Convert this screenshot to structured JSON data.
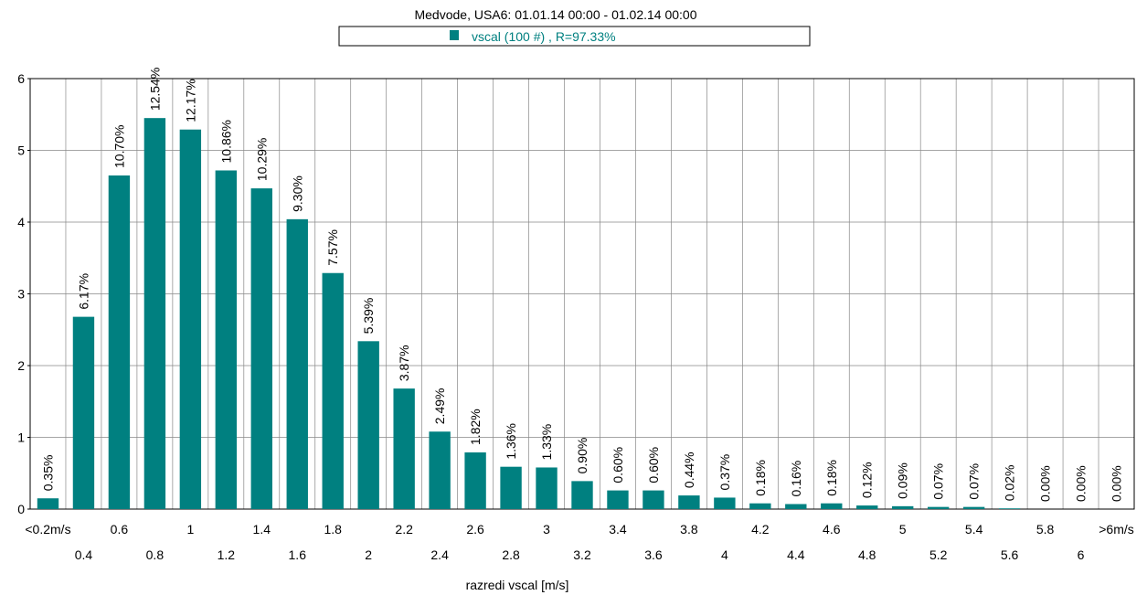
{
  "chart_data": {
    "type": "bar",
    "title": "Medvode, USA6: 01.01.14 00:00 - 01.02.14 00:00",
    "xlabel": "razredi vscal [m/s]",
    "ylabel": "",
    "ylim": [
      0,
      6
    ],
    "yticks": [
      "0",
      "1",
      "2",
      "3",
      "4",
      "5",
      "6"
    ],
    "grid": true,
    "legend": {
      "placement": "top-center"
    },
    "categories": [
      "<0.2m/s",
      "0.4",
      "0.6",
      "0.8",
      "1",
      "1.2",
      "1.4",
      "1.6",
      "1.8",
      "2",
      "2.2",
      "2.4",
      "2.6",
      "2.8",
      "3",
      "3.2",
      "3.4",
      "3.6",
      "3.8",
      "4",
      "4.2",
      "4.4",
      "4.6",
      "4.8",
      "5",
      "5.2",
      "5.4",
      "5.6",
      "5.8",
      "6",
      ">6m/s"
    ],
    "series": [
      {
        "name": "vscal (100 #) , R=97.33%",
        "color": "#008080",
        "values": [
          0.15,
          2.68,
          4.65,
          5.45,
          5.29,
          4.72,
          4.47,
          4.04,
          3.29,
          2.34,
          1.68,
          1.08,
          0.79,
          0.59,
          0.58,
          0.39,
          0.26,
          0.26,
          0.19,
          0.16,
          0.08,
          0.07,
          0.08,
          0.05,
          0.04,
          0.03,
          0.03,
          0.01,
          0,
          0,
          0
        ],
        "labels": [
          "0.35%",
          "6.17%",
          "10.70%",
          "12.54%",
          "12.17%",
          "10.86%",
          "10.29%",
          "9.30%",
          "7.57%",
          "5.39%",
          "3.87%",
          "2.49%",
          "1.82%",
          "1.36%",
          "1.33%",
          "0.90%",
          "0.60%",
          "0.60%",
          "0.44%",
          "0.37%",
          "0.18%",
          "0.16%",
          "0.18%",
          "0.12%",
          "0.09%",
          "0.07%",
          "0.07%",
          "0.02%",
          "0.00%",
          "0.00%",
          "0.00%"
        ]
      }
    ]
  }
}
